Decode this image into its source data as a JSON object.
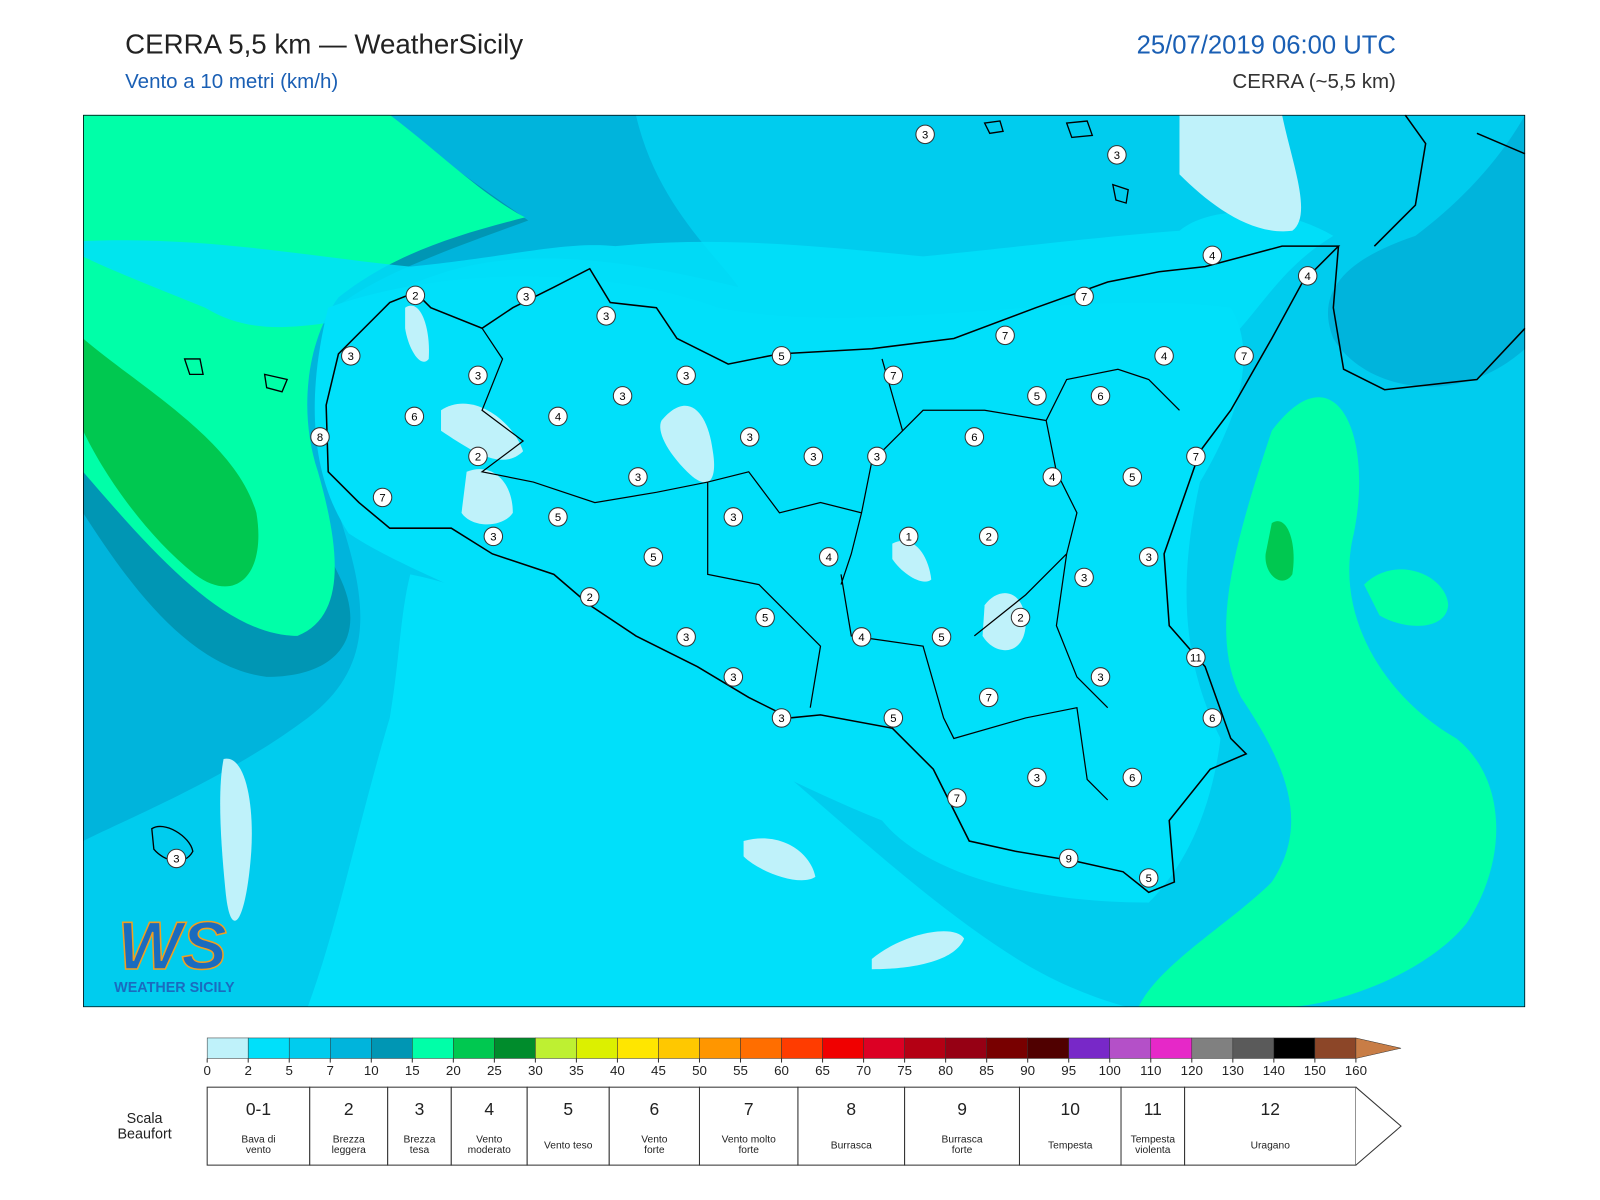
{
  "header": {
    "title": "CERRA 5,5 km — WeatherSicily",
    "subtitle": "Vento a 10 metri (km/h)",
    "date": "25/07/2019 06:00 UTC",
    "model": "CERRA (~5,5 km)"
  },
  "map": {
    "stations": [
      3,
      3,
      4,
      4,
      2,
      3,
      3,
      7,
      7,
      3,
      5,
      4,
      7,
      3,
      3,
      7,
      5,
      6,
      3,
      6,
      4,
      8,
      3,
      6,
      2,
      3,
      3,
      7,
      3,
      4,
      5,
      7,
      5,
      3,
      3,
      1,
      2,
      5,
      4,
      3,
      3,
      2,
      2,
      5,
      3,
      4,
      5,
      11,
      3,
      3,
      7,
      6,
      3,
      5,
      3,
      6,
      7,
      3,
      9,
      5
    ]
  },
  "logo": {
    "mark": "WS",
    "text": "WEATHER SICILY"
  },
  "colorbar": {
    "ticks": [
      0,
      2,
      5,
      7,
      10,
      15,
      20,
      25,
      30,
      35,
      40,
      45,
      50,
      55,
      60,
      65,
      70,
      75,
      80,
      85,
      90,
      95,
      100,
      110,
      120,
      130,
      140,
      150,
      160
    ],
    "colors": [
      "#bff2fa",
      "#00e0fa",
      "#00ccee",
      "#00b4dc",
      "#0096b4",
      "#00ffa8",
      "#00c850",
      "#008c2c",
      "#bef032",
      "#dcf000",
      "#ffe600",
      "#ffc800",
      "#ff9600",
      "#ff6e00",
      "#ff3c00",
      "#f00000",
      "#dc0024",
      "#b40014",
      "#960014",
      "#780000",
      "#500000",
      "#7828c8",
      "#b450c8",
      "#e628c8",
      "#808080",
      "#5a5a5a",
      "#000000",
      "#8c4628"
    ],
    "extend_color": "#c87d46"
  },
  "beaufort": {
    "label": "Scala Beaufort",
    "entries": [
      {
        "force": "0-1",
        "name": [
          "Bava di",
          "vento"
        ]
      },
      {
        "force": "2",
        "name": [
          "Brezza",
          "leggera"
        ]
      },
      {
        "force": "3",
        "name": [
          "Brezza",
          "tesa"
        ]
      },
      {
        "force": "4",
        "name": [
          "Vento",
          "moderato"
        ]
      },
      {
        "force": "5",
        "name": [
          "Vento teso"
        ]
      },
      {
        "force": "6",
        "name": [
          "Vento",
          "forte"
        ]
      },
      {
        "force": "7",
        "name": [
          "Vento molto",
          "forte"
        ]
      },
      {
        "force": "8",
        "name": [
          "Burrasca"
        ]
      },
      {
        "force": "9",
        "name": [
          "Burrasca",
          "forte"
        ]
      },
      {
        "force": "10",
        "name": [
          "Tempesta"
        ]
      },
      {
        "force": "11",
        "name": [
          "Tempesta",
          "violenta"
        ]
      },
      {
        "force": "12",
        "name": [
          "Uragano"
        ]
      }
    ]
  }
}
